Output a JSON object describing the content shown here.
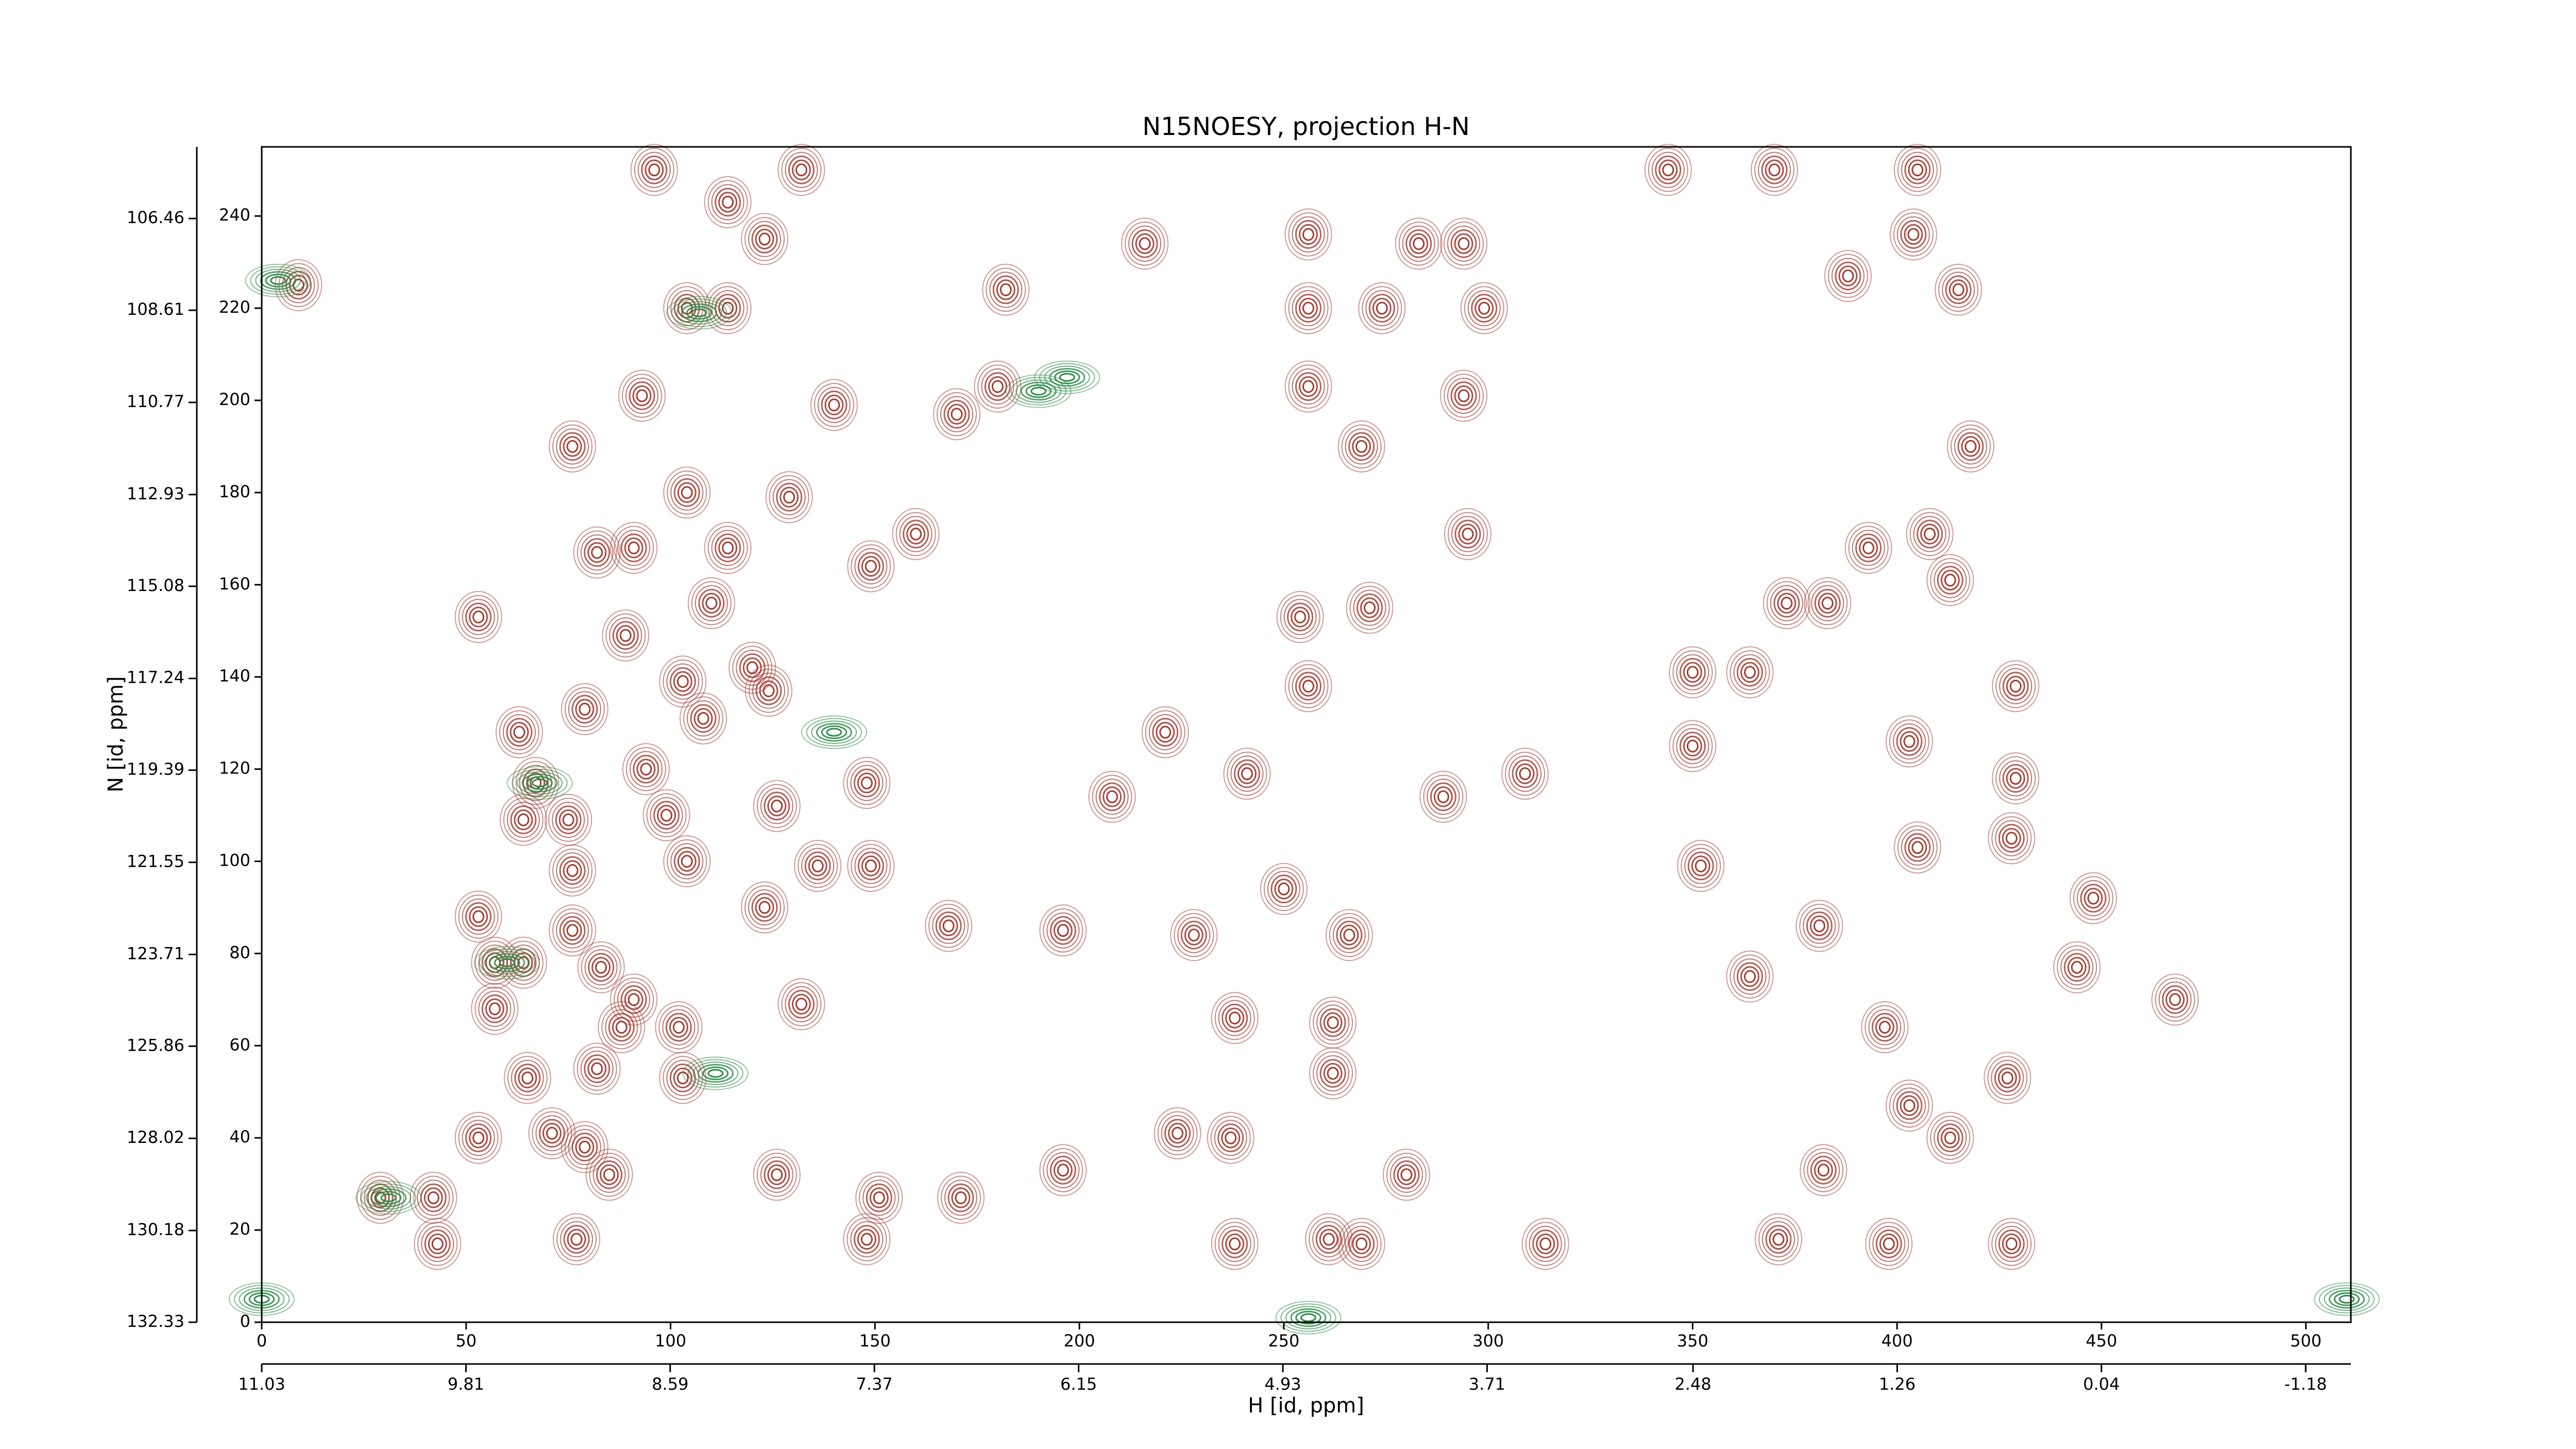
{
  "chart_data": {
    "type": "contour",
    "title": "N15NOESY, projection H-N",
    "xlabel": "H [id, ppm]",
    "ylabel": "N [id, ppm]",
    "xlim": [
      0,
      511
    ],
    "ylim": [
      0,
      255
    ],
    "xticks": [
      0,
      50,
      100,
      150,
      200,
      250,
      300,
      350,
      400,
      450,
      500
    ],
    "yticks": [
      0,
      20,
      40,
      60,
      80,
      100,
      120,
      140,
      160,
      180,
      200,
      220,
      240
    ],
    "x2lim": [
      11.03,
      -1.45
    ],
    "x2ticks": [
      11.03,
      9.81,
      8.59,
      7.37,
      6.15,
      4.93,
      3.71,
      2.48,
      1.26,
      0.04,
      -1.18
    ],
    "y2lim": [
      132.33,
      104.78
    ],
    "y2ticks": [
      132.33,
      130.18,
      128.02,
      125.86,
      123.71,
      121.55,
      119.39,
      117.24,
      115.08,
      112.93,
      110.77,
      108.61,
      106.46
    ],
    "series": [
      {
        "color": "#a33a30",
        "x": [
          9,
          96,
          132,
          114,
          123,
          104,
          114,
          182,
          216,
          256,
          256,
          274,
          283,
          294,
          299,
          405,
          404,
          415,
          388,
          370,
          344,
          93,
          140,
          180,
          170,
          256,
          294,
          76,
          104,
          269,
          418,
          82,
          91,
          114,
          129,
          160,
          295,
          393,
          408,
          53,
          110,
          149,
          373,
          383,
          413,
          254,
          271,
          120,
          89,
          103,
          124,
          63,
          79,
          108,
          221,
          256,
          350,
          364,
          429,
          67,
          94,
          126,
          148,
          208,
          241,
          289,
          309,
          350,
          403,
          429,
          64,
          75,
          99,
          428,
          76,
          104,
          136,
          149,
          250,
          352,
          405,
          53,
          76,
          123,
          168,
          196,
          228,
          266,
          381,
          448,
          57,
          64,
          83,
          364,
          444,
          57,
          91,
          132,
          468,
          88,
          102,
          238,
          262,
          397,
          103,
          262,
          427,
          65,
          82,
          53,
          71,
          79,
          224,
          237,
          403,
          413,
          85,
          126,
          196,
          280,
          382,
          29,
          42,
          151,
          171,
          238,
          261,
          269,
          314,
          371,
          398,
          428,
          43,
          77,
          148
        ],
        "y": [
          225,
          250,
          250,
          243,
          235,
          220,
          220,
          224,
          234,
          236,
          220,
          220,
          234,
          234,
          220,
          250,
          236,
          224,
          227,
          250,
          250,
          201,
          199,
          203,
          197,
          203,
          201,
          190,
          180,
          190,
          190,
          167,
          168,
          168,
          179,
          171,
          171,
          168,
          171,
          153,
          156,
          164,
          156,
          156,
          161,
          153,
          155,
          142,
          149,
          139,
          137,
          128,
          133,
          131,
          128,
          138,
          141,
          141,
          138,
          117,
          120,
          112,
          117,
          114,
          119,
          114,
          119,
          125,
          126,
          118,
          109,
          109,
          110,
          105,
          98,
          100,
          99,
          99,
          94,
          99,
          103,
          88,
          85,
          90,
          86,
          85,
          84,
          84,
          86,
          92,
          78,
          78,
          77,
          75,
          77,
          68,
          70,
          69,
          70,
          64,
          64,
          66,
          65,
          64,
          53,
          54,
          53,
          53,
          55,
          40,
          41,
          38,
          41,
          40,
          47,
          40,
          32,
          32,
          33,
          32,
          33,
          27,
          27,
          27,
          27,
          17,
          18,
          17,
          17,
          18,
          17,
          17,
          17,
          18,
          18
        ]
      },
      {
        "color": "#2e8b48",
        "x": [
          4,
          107,
          197,
          140,
          68,
          111,
          31,
          0,
          510,
          256,
          60,
          190
        ],
        "y": [
          226,
          219,
          205,
          128,
          117,
          54,
          27,
          5,
          5,
          1,
          78,
          202
        ]
      }
    ]
  }
}
